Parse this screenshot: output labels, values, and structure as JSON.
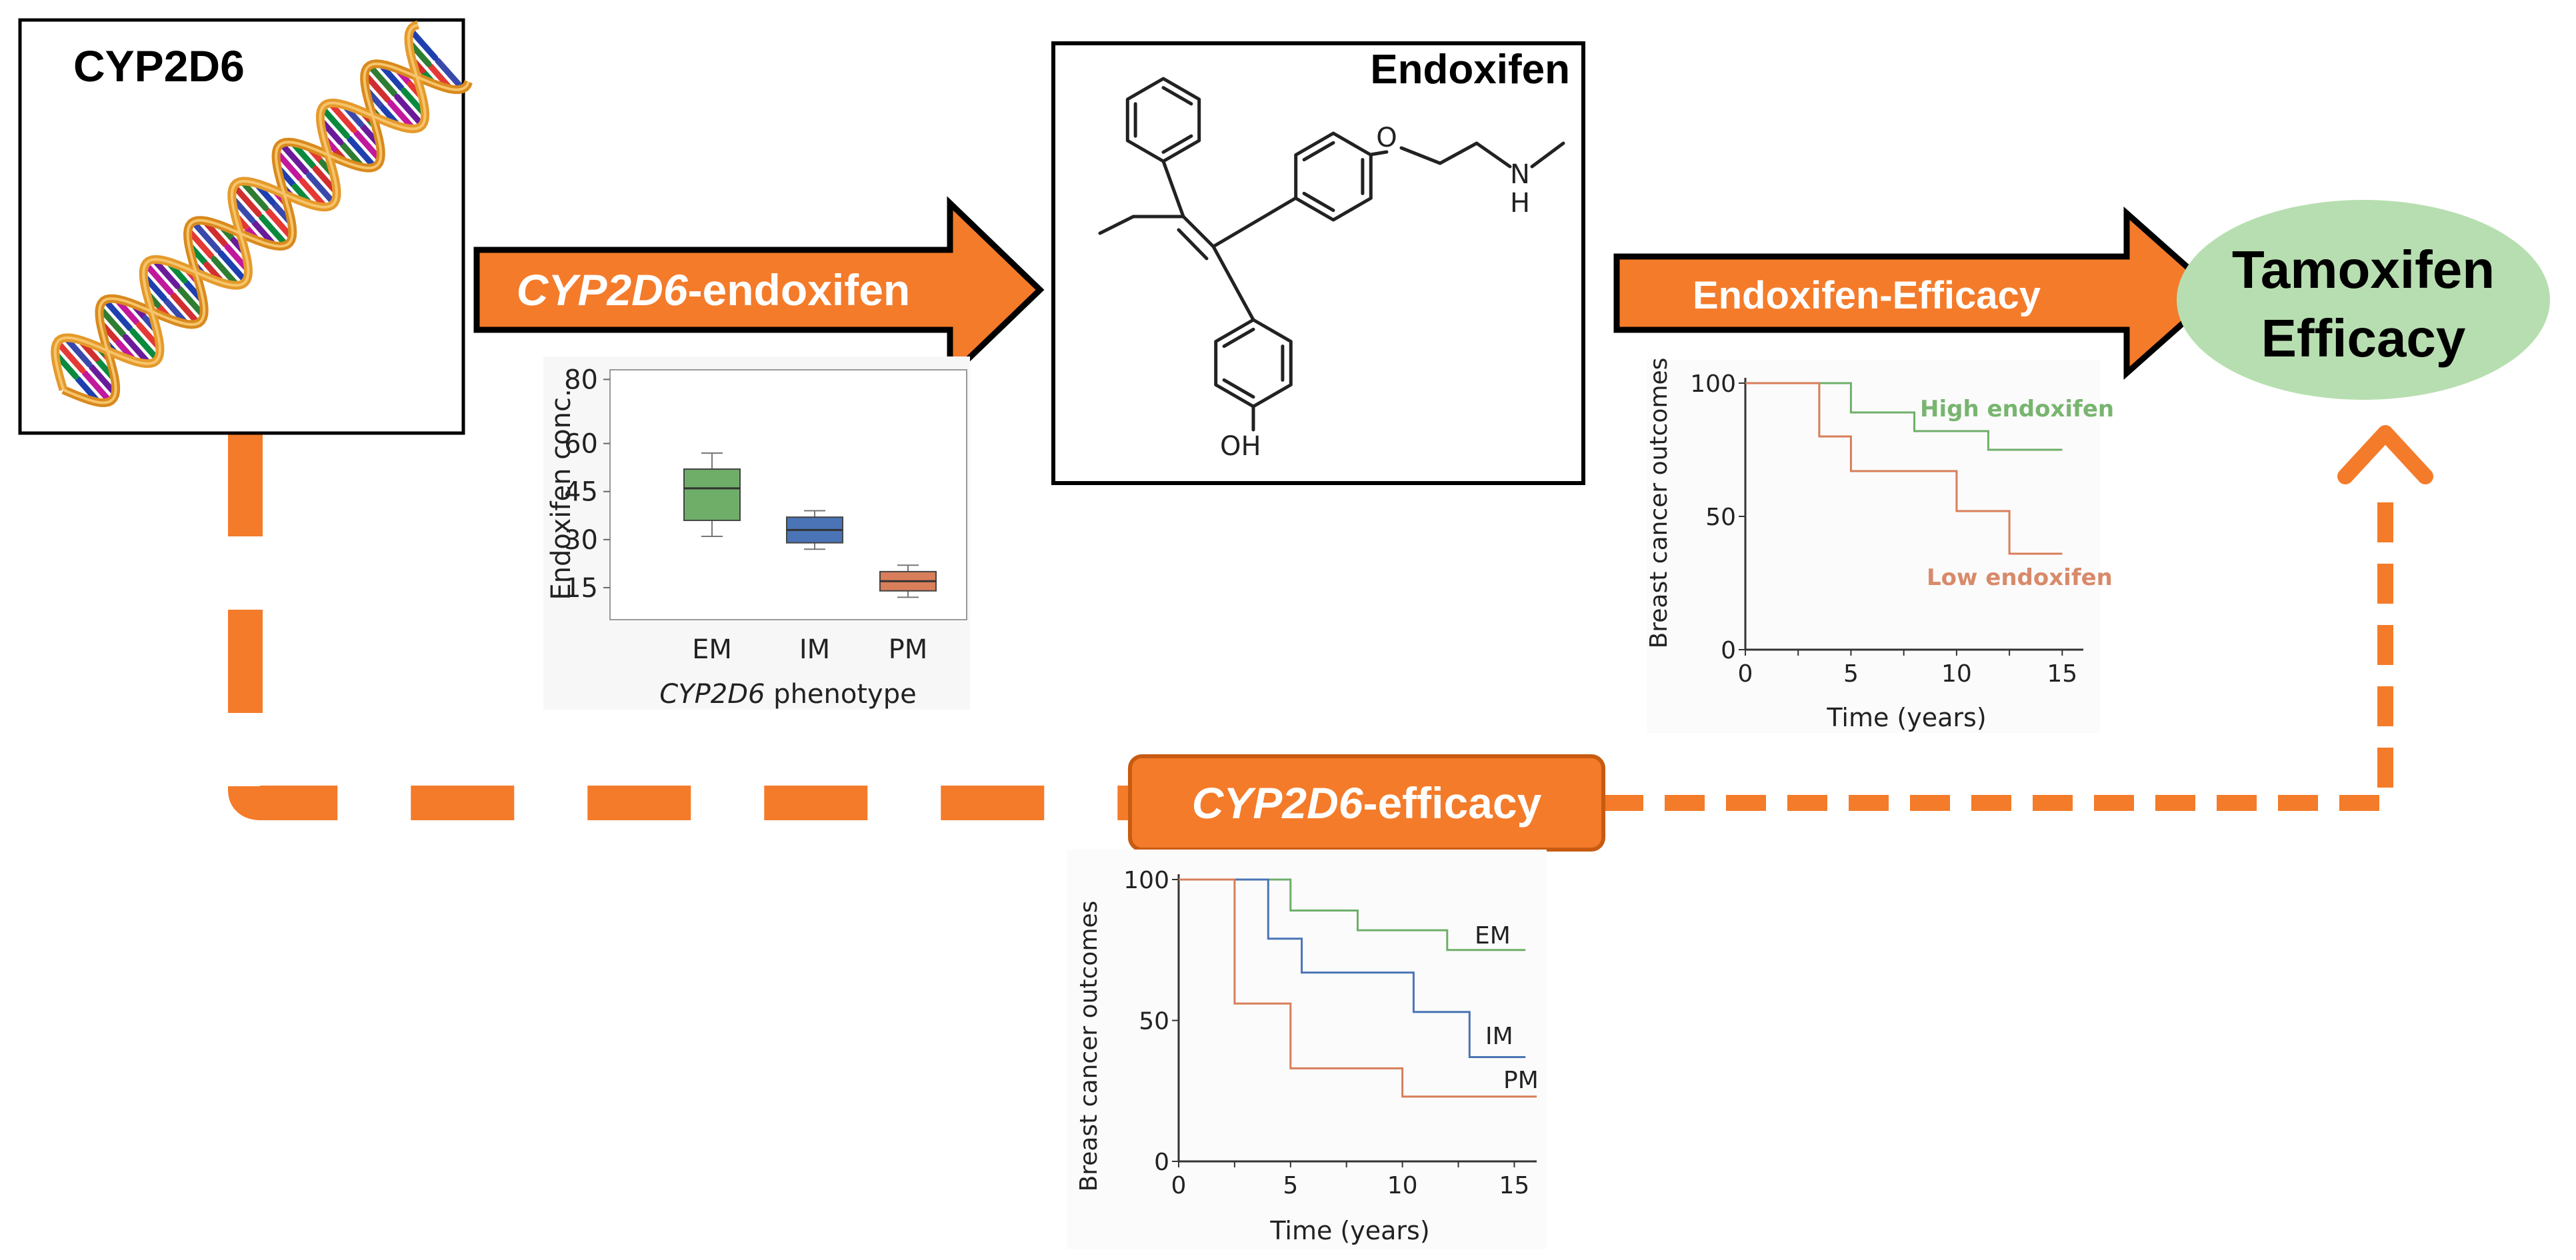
{
  "colors": {
    "orange": "#f47b2a",
    "orange_dark": "#c85b12",
    "ellipse": "#b7deb0",
    "em": "#6fae69",
    "im": "#4a74b5",
    "pm": "#d87e5a",
    "high_label": "#78b56f",
    "low_label": "#d88a6a"
  },
  "boxes": {
    "cyp2d6_title": "CYP2D6",
    "endoxifen_title": "Endoxifen",
    "oh_label": "OH",
    "o_label": "O",
    "n_label": "N",
    "h_label": "H"
  },
  "arrows": {
    "cyp2d6_endoxifen": {
      "italic": "CYP2D6",
      "rest": "-endoxifen"
    },
    "endoxifen_efficacy": "Endoxifen-Efficacy",
    "cyp2d6_efficacy": {
      "italic": "CYP2D6",
      "rest": "-efficacy"
    }
  },
  "outcome": {
    "line1": "Tamoxifen",
    "line2": "Efficacy"
  },
  "chart_data": [
    {
      "type": "box",
      "ylabel": "Endoxifen conc.",
      "xlabel_italic": "CYP2D6",
      "xlabel_rest": " phenotype",
      "yticks": [
        15,
        30,
        45,
        60,
        80
      ],
      "categories": [
        "EM",
        "IM",
        "PM"
      ],
      "boxes": [
        {
          "name": "EM",
          "min": 31,
          "q1": 36,
          "median": 46,
          "q3": 52,
          "max": 57
        },
        {
          "name": "IM",
          "min": 27,
          "q1": 29,
          "median": 33,
          "q3": 37,
          "max": 39
        },
        {
          "name": "PM",
          "min": 12,
          "q1": 14,
          "median": 17,
          "q3": 20,
          "max": 22
        }
      ]
    },
    {
      "type": "line",
      "ylabel": "Breast cancer outcomes",
      "xlabel": "Time (years)",
      "xticks": [
        0,
        5,
        10,
        15
      ],
      "yticks": [
        0,
        50,
        100
      ],
      "xlim": [
        0,
        16
      ],
      "ylim": [
        0,
        100
      ],
      "series": [
        {
          "name": "High endoxifen",
          "points": [
            [
              0,
              100
            ],
            [
              5,
              100
            ],
            [
              5,
              89
            ],
            [
              8,
              89
            ],
            [
              8,
              82
            ],
            [
              11.5,
              82
            ],
            [
              11.5,
              75
            ],
            [
              15,
              75
            ]
          ]
        },
        {
          "name": "Low endoxifen",
          "points": [
            [
              0,
              100
            ],
            [
              3.5,
              100
            ],
            [
              3.5,
              80
            ],
            [
              5,
              80
            ],
            [
              5,
              67
            ],
            [
              10,
              67
            ],
            [
              10,
              52
            ],
            [
              12.5,
              52
            ],
            [
              12.5,
              36
            ],
            [
              15,
              36
            ]
          ]
        }
      ]
    },
    {
      "type": "line",
      "ylabel": "Breast cancer outcomes",
      "xlabel": "Time (years)",
      "xticks": [
        0,
        5,
        10,
        15
      ],
      "yticks": [
        0,
        50,
        100
      ],
      "xlim": [
        0,
        16
      ],
      "ylim": [
        0,
        100
      ],
      "series": [
        {
          "name": "EM",
          "points": [
            [
              0,
              100
            ],
            [
              5,
              100
            ],
            [
              5,
              89
            ],
            [
              8,
              89
            ],
            [
              8,
              82
            ],
            [
              12,
              82
            ],
            [
              12,
              75
            ],
            [
              15.5,
              75
            ]
          ]
        },
        {
          "name": "IM",
          "points": [
            [
              0,
              100
            ],
            [
              4,
              100
            ],
            [
              4,
              79
            ],
            [
              5.5,
              79
            ],
            [
              5.5,
              67
            ],
            [
              10.5,
              67
            ],
            [
              10.5,
              53
            ],
            [
              13,
              53
            ],
            [
              13,
              37
            ],
            [
              15.5,
              37
            ]
          ]
        },
        {
          "name": "PM",
          "points": [
            [
              0,
              100
            ],
            [
              2.5,
              100
            ],
            [
              2.5,
              56
            ],
            [
              5,
              56
            ],
            [
              5,
              33
            ],
            [
              10,
              33
            ],
            [
              10,
              23
            ],
            [
              16,
              23
            ]
          ]
        }
      ]
    }
  ]
}
